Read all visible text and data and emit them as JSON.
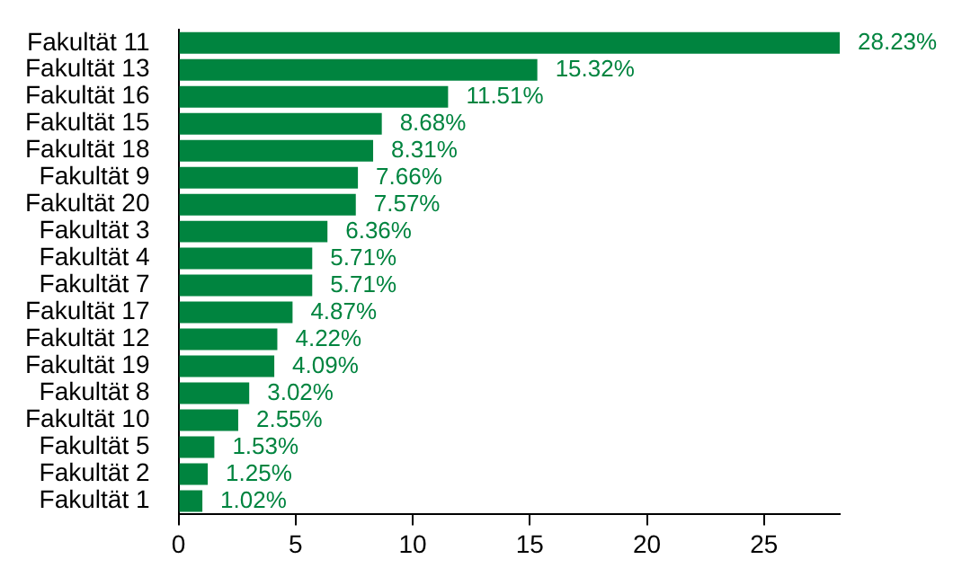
{
  "chart_data": {
    "type": "bar",
    "orientation": "horizontal",
    "categories": [
      "Fakultät 11",
      "Fakultät 13",
      "Fakultät 16",
      "Fakultät 15",
      "Fakultät 18",
      "Fakultät 9",
      "Fakultät 20",
      "Fakultät 3",
      "Fakultät 4",
      "Fakultät 7",
      "Fakultät 17",
      "Fakultät 12",
      "Fakultät 19",
      "Fakultät 8",
      "Fakultät 10",
      "Fakultät 5",
      "Fakultät 2",
      "Fakultät 1"
    ],
    "values": [
      28.23,
      15.32,
      11.51,
      8.68,
      8.31,
      7.66,
      7.57,
      6.36,
      5.71,
      5.71,
      4.87,
      4.22,
      4.09,
      3.02,
      2.55,
      1.53,
      1.25,
      1.02
    ],
    "value_labels": [
      "28.23%",
      "15.32%",
      "11.51%",
      "8.68%",
      "8.31%",
      "7.66%",
      "7.57%",
      "6.36%",
      "5.71%",
      "5.71%",
      "4.87%",
      "4.22%",
      "4.09%",
      "3.02%",
      "2.55%",
      "1.53%",
      "1.25%",
      "1.02%"
    ],
    "color": "#00843f",
    "xlim": [
      0,
      28.23
    ],
    "xticks": [
      0,
      5,
      10,
      15,
      20,
      25
    ]
  }
}
